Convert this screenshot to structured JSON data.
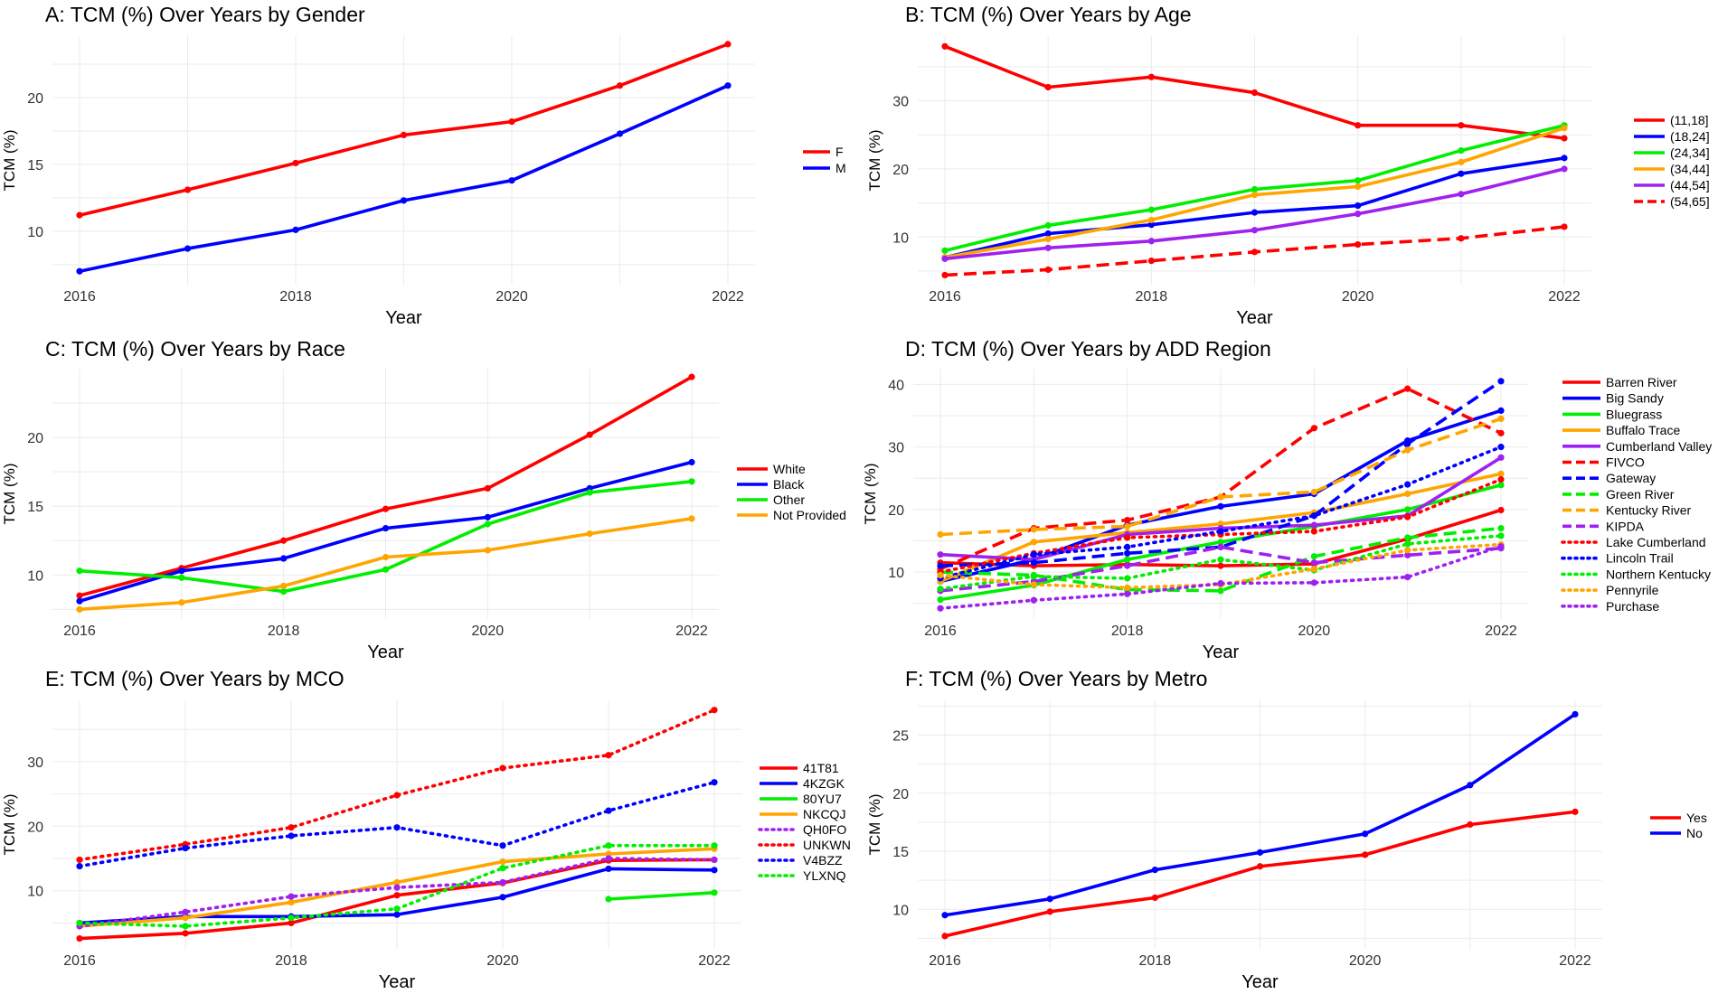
{
  "figure": {
    "background": "#ffffff",
    "grid_color": "#ebebeb"
  },
  "chart_data": [
    {
      "id": "A",
      "type": "line",
      "title": "A: TCM (%) Over Years by Gender",
      "xlabel": "Year",
      "ylabel": "TCM (%)",
      "x": [
        2016,
        2017,
        2018,
        2019,
        2020,
        2021,
        2022
      ],
      "x_ticks": [
        2016,
        2018,
        2020,
        2022
      ],
      "y_ticks": [
        10,
        15,
        20
      ],
      "xlim": [
        2016,
        2022
      ],
      "ylim": [
        6.0,
        24.6
      ],
      "grid": true,
      "legend": "right",
      "series": [
        {
          "name": "F",
          "color": "#ff0000",
          "dash": "solid",
          "values": [
            11.2,
            13.1,
            15.1,
            17.2,
            18.2,
            20.9,
            24.0
          ]
        },
        {
          "name": "M",
          "color": "#0000ff",
          "dash": "solid",
          "values": [
            7.0,
            8.7,
            10.1,
            12.3,
            13.8,
            17.3,
            20.9
          ]
        }
      ]
    },
    {
      "id": "B",
      "type": "line",
      "title": "B: TCM (%) Over Years by Age",
      "xlabel": "Year",
      "ylabel": "TCM (%)",
      "x": [
        2016,
        2017,
        2018,
        2019,
        2020,
        2021,
        2022
      ],
      "x_ticks": [
        2016,
        2018,
        2020,
        2022
      ],
      "y_ticks": [
        10,
        20,
        30
      ],
      "xlim": [
        2016,
        2022
      ],
      "ylim": [
        3.0,
        39.5
      ],
      "grid": true,
      "legend": "right",
      "series": [
        {
          "name": "(11,18]",
          "color": "#ff0000",
          "dash": "solid",
          "values": [
            38.0,
            32.0,
            33.5,
            31.2,
            26.4,
            26.4,
            24.5
          ]
        },
        {
          "name": "(18,24]",
          "color": "#0000ff",
          "dash": "solid",
          "values": [
            7.0,
            10.5,
            11.8,
            13.6,
            14.6,
            19.3,
            21.6
          ]
        },
        {
          "name": "(24,34]",
          "color": "#00ee00",
          "dash": "solid",
          "values": [
            8.0,
            11.7,
            14.0,
            17.0,
            18.3,
            22.7,
            26.4
          ]
        },
        {
          "name": "(34,44]",
          "color": "#ffa500",
          "dash": "solid",
          "values": [
            7.0,
            9.7,
            12.5,
            16.2,
            17.4,
            21.0,
            26.0
          ]
        },
        {
          "name": "(44,54]",
          "color": "#a020f0",
          "dash": "solid",
          "values": [
            6.8,
            8.4,
            9.4,
            11.0,
            13.4,
            16.3,
            20.0
          ]
        },
        {
          "name": "(54,65]",
          "color": "#ff0000",
          "dash": "dashed",
          "values": [
            4.4,
            5.2,
            6.5,
            7.8,
            8.9,
            9.8,
            11.5
          ]
        }
      ]
    },
    {
      "id": "C",
      "type": "line",
      "title": "C: TCM (%) Over Years by Race",
      "xlabel": "Year",
      "ylabel": "TCM (%)",
      "x": [
        2016,
        2017,
        2018,
        2019,
        2020,
        2021,
        2022
      ],
      "x_ticks": [
        2016,
        2018,
        2020,
        2022
      ],
      "y_ticks": [
        10,
        15,
        20
      ],
      "xlim": [
        2016,
        2022
      ],
      "ylim": [
        6.8,
        25.0
      ],
      "grid": true,
      "legend": "right",
      "series": [
        {
          "name": "White",
          "color": "#ff0000",
          "dash": "solid",
          "values": [
            8.5,
            10.5,
            12.5,
            14.8,
            16.3,
            20.2,
            24.4
          ]
        },
        {
          "name": "Black",
          "color": "#0000ff",
          "dash": "solid",
          "values": [
            8.1,
            10.3,
            11.2,
            13.4,
            14.2,
            16.3,
            18.2
          ]
        },
        {
          "name": "Other",
          "color": "#00ee00",
          "dash": "solid",
          "values": [
            10.3,
            9.8,
            8.8,
            10.4,
            13.7,
            16.0,
            16.8
          ]
        },
        {
          "name": "Not Provided",
          "color": "#ffa500",
          "dash": "solid",
          "values": [
            7.5,
            8.0,
            9.2,
            11.3,
            11.8,
            13.0,
            14.1
          ]
        }
      ]
    },
    {
      "id": "D",
      "type": "line",
      "title": "D: TCM (%) Over Years by ADD Region",
      "xlabel": "Year",
      "ylabel": "TCM (%)",
      "x": [
        2016,
        2017,
        2018,
        2019,
        2020,
        2021,
        2022
      ],
      "x_ticks": [
        2016,
        2018,
        2020,
        2022
      ],
      "y_ticks": [
        10,
        20,
        30,
        40
      ],
      "xlim": [
        2016,
        2022
      ],
      "ylim": [
        2.5,
        42.5
      ],
      "grid": true,
      "legend": "right",
      "series": [
        {
          "name": "Barren River",
          "color": "#ff0000",
          "dash": "solid",
          "values": [
            11.5,
            11.0,
            11.2,
            11.0,
            11.3,
            15.3,
            19.9
          ]
        },
        {
          "name": "Big Sandy",
          "color": "#0000ff",
          "dash": "solid",
          "values": [
            8.5,
            12.0,
            17.5,
            20.5,
            22.5,
            31.0,
            35.8
          ]
        },
        {
          "name": "Bluegrass",
          "color": "#00ee00",
          "dash": "solid",
          "values": [
            5.6,
            7.9,
            12.0,
            14.8,
            17.3,
            20.0,
            23.9
          ]
        },
        {
          "name": "Buffalo Trace",
          "color": "#ffa500",
          "dash": "solid",
          "values": [
            8.5,
            14.8,
            16.3,
            17.7,
            19.5,
            22.5,
            25.7
          ]
        },
        {
          "name": "Cumberland Valley",
          "color": "#a020f0",
          "dash": "solid",
          "values": [
            12.8,
            12.0,
            16.0,
            17.0,
            17.5,
            19.0,
            28.3
          ]
        },
        {
          "name": "FIVCO",
          "color": "#ff0000",
          "dash": "dashed",
          "values": [
            10.5,
            17.0,
            18.3,
            22.0,
            33.0,
            39.3,
            32.2
          ]
        },
        {
          "name": "Gateway",
          "color": "#0000ff",
          "dash": "dashed",
          "values": [
            11.0,
            11.5,
            13.0,
            14.0,
            19.0,
            30.5,
            40.5
          ]
        },
        {
          "name": "Green River",
          "color": "#00ee00",
          "dash": "dashed",
          "values": [
            10.0,
            9.5,
            7.2,
            7.0,
            12.5,
            15.5,
            17.0
          ]
        },
        {
          "name": "Kentucky River",
          "color": "#ffa500",
          "dash": "dashed",
          "values": [
            16.0,
            16.8,
            17.3,
            22.0,
            22.8,
            29.5,
            34.5
          ]
        },
        {
          "name": "KIPDA",
          "color": "#a020f0",
          "dash": "dashed",
          "values": [
            7.0,
            8.5,
            11.0,
            14.0,
            11.5,
            12.7,
            13.8
          ]
        },
        {
          "name": "Lake Cumberland",
          "color": "#ff0000",
          "dash": "dotted",
          "values": [
            10.0,
            13.0,
            15.5,
            16.0,
            16.5,
            18.8,
            24.8
          ]
        },
        {
          "name": "Lincoln Trail",
          "color": "#0000ff",
          "dash": "dotted",
          "values": [
            9.0,
            12.8,
            14.0,
            16.5,
            19.0,
            24.0,
            30.0
          ]
        },
        {
          "name": "Northern Kentucky",
          "color": "#00ee00",
          "dash": "dotted",
          "values": [
            7.3,
            9.3,
            9.0,
            12.0,
            10.3,
            14.5,
            15.8
          ]
        },
        {
          "name": "Pennyrile",
          "color": "#ffa500",
          "dash": "dotted",
          "values": [
            9.5,
            8.0,
            7.5,
            8.0,
            10.5,
            13.5,
            14.4
          ]
        },
        {
          "name": "Purchase",
          "color": "#a020f0",
          "dash": "dotted",
          "values": [
            4.2,
            5.5,
            6.5,
            8.2,
            8.3,
            9.2,
            14.1
          ]
        }
      ]
    },
    {
      "id": "E",
      "type": "line",
      "title": "E: TCM (%) Over Years by MCO",
      "xlabel": "Year",
      "ylabel": "TCM (%)",
      "x": [
        2016,
        2017,
        2018,
        2019,
        2020,
        2021,
        2022
      ],
      "x_ticks": [
        2016,
        2018,
        2020,
        2022
      ],
      "y_ticks": [
        10,
        20,
        30
      ],
      "xlim": [
        2016,
        2022
      ],
      "ylim": [
        1.0,
        39.5
      ],
      "grid": true,
      "legend": "right",
      "series": [
        {
          "name": "41T81",
          "color": "#ff0000",
          "dash": "solid",
          "values": [
            2.6,
            3.4,
            5.0,
            9.3,
            11.2,
            14.7,
            14.8
          ]
        },
        {
          "name": "4KZGK",
          "color": "#0000ff",
          "dash": "solid",
          "values": [
            5.0,
            6.0,
            6.0,
            6.3,
            9.0,
            13.4,
            13.2
          ]
        },
        {
          "name": "80YU7",
          "color": "#00ee00",
          "dash": "solid",
          "values": [
            null,
            null,
            null,
            null,
            null,
            8.7,
            9.7
          ]
        },
        {
          "name": "NKCQJ",
          "color": "#ffa500",
          "dash": "solid",
          "values": [
            4.5,
            5.8,
            8.2,
            11.3,
            14.5,
            15.7,
            16.5
          ]
        },
        {
          "name": "QH0FO",
          "color": "#a020f0",
          "dash": "dotted",
          "values": [
            4.5,
            6.7,
            9.1,
            10.5,
            11.3,
            15.0,
            14.8
          ]
        },
        {
          "name": "UNKWN",
          "color": "#ff0000",
          "dash": "dotted",
          "values": [
            14.8,
            17.2,
            19.8,
            24.8,
            29.0,
            31.0,
            38.0
          ]
        },
        {
          "name": "V4BZZ",
          "color": "#0000ff",
          "dash": "dotted",
          "values": [
            13.8,
            16.6,
            18.5,
            19.8,
            17.0,
            22.4,
            26.8
          ]
        },
        {
          "name": "YLXNQ",
          "color": "#00ee00",
          "dash": "dotted",
          "values": [
            5.0,
            4.5,
            5.8,
            7.2,
            13.5,
            17.0,
            17.0
          ]
        }
      ]
    },
    {
      "id": "F",
      "type": "line",
      "title": "F: TCM (%) Over Years by Metro",
      "xlabel": "Year",
      "ylabel": "TCM (%)",
      "x": [
        2016,
        2017,
        2018,
        2019,
        2020,
        2021,
        2022
      ],
      "x_ticks": [
        2016,
        2018,
        2020,
        2022
      ],
      "y_ticks": [
        10,
        15,
        20,
        25
      ],
      "xlim": [
        2016,
        2022
      ],
      "ylim": [
        6.6,
        28.0
      ],
      "grid": true,
      "legend": "right",
      "series": [
        {
          "name": "Yes",
          "color": "#ff0000",
          "dash": "solid",
          "values": [
            7.7,
            9.8,
            11.0,
            13.7,
            14.7,
            17.3,
            18.4
          ]
        },
        {
          "name": "No",
          "color": "#0000ff",
          "dash": "solid",
          "values": [
            9.5,
            10.9,
            13.4,
            14.9,
            16.5,
            20.7,
            26.8
          ]
        }
      ]
    }
  ]
}
